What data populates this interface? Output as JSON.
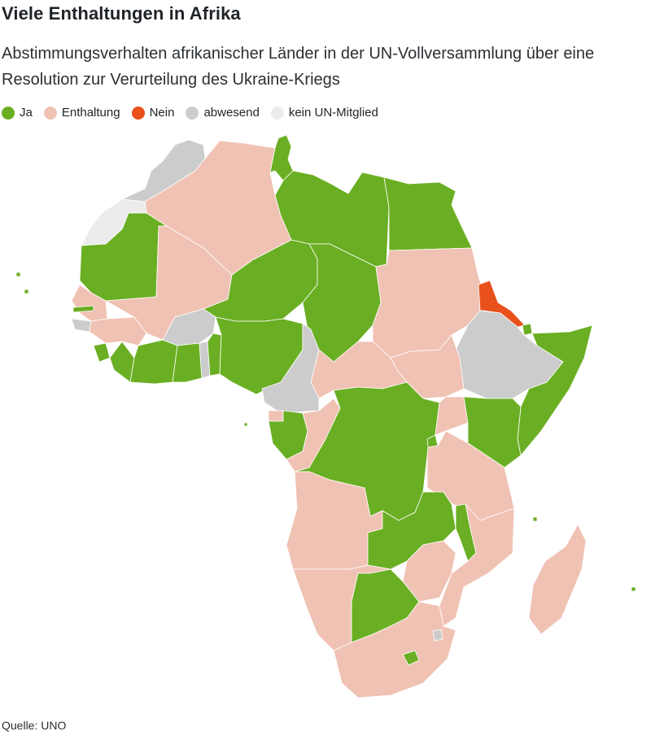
{
  "title": "Viele Enthaltungen in Afrika",
  "subtitle": "Abstimmungsverhalten afrikanischer Länder in der UN-Vollversammlung über eine Resolution zur Verurteilung des Ukraine-Kriegs",
  "legend": [
    {
      "label": "Ja",
      "color": "#6aaf23"
    },
    {
      "label": "Enthaltung",
      "color": "#f0c2b4"
    },
    {
      "label": "Nein",
      "color": "#e8501c"
    },
    {
      "label": "abwesend",
      "color": "#cccccc"
    },
    {
      "label": "kein UN-Mitglied",
      "color": "#ececec"
    }
  ],
  "source": "Quelle: UNO",
  "map_categories": {
    "ja": "#6aaf23",
    "enthaltung": "#f0c2b4",
    "nein": "#e8501c",
    "abwesend": "#cccccc",
    "kein_un_mitglied": "#ececec"
  }
}
